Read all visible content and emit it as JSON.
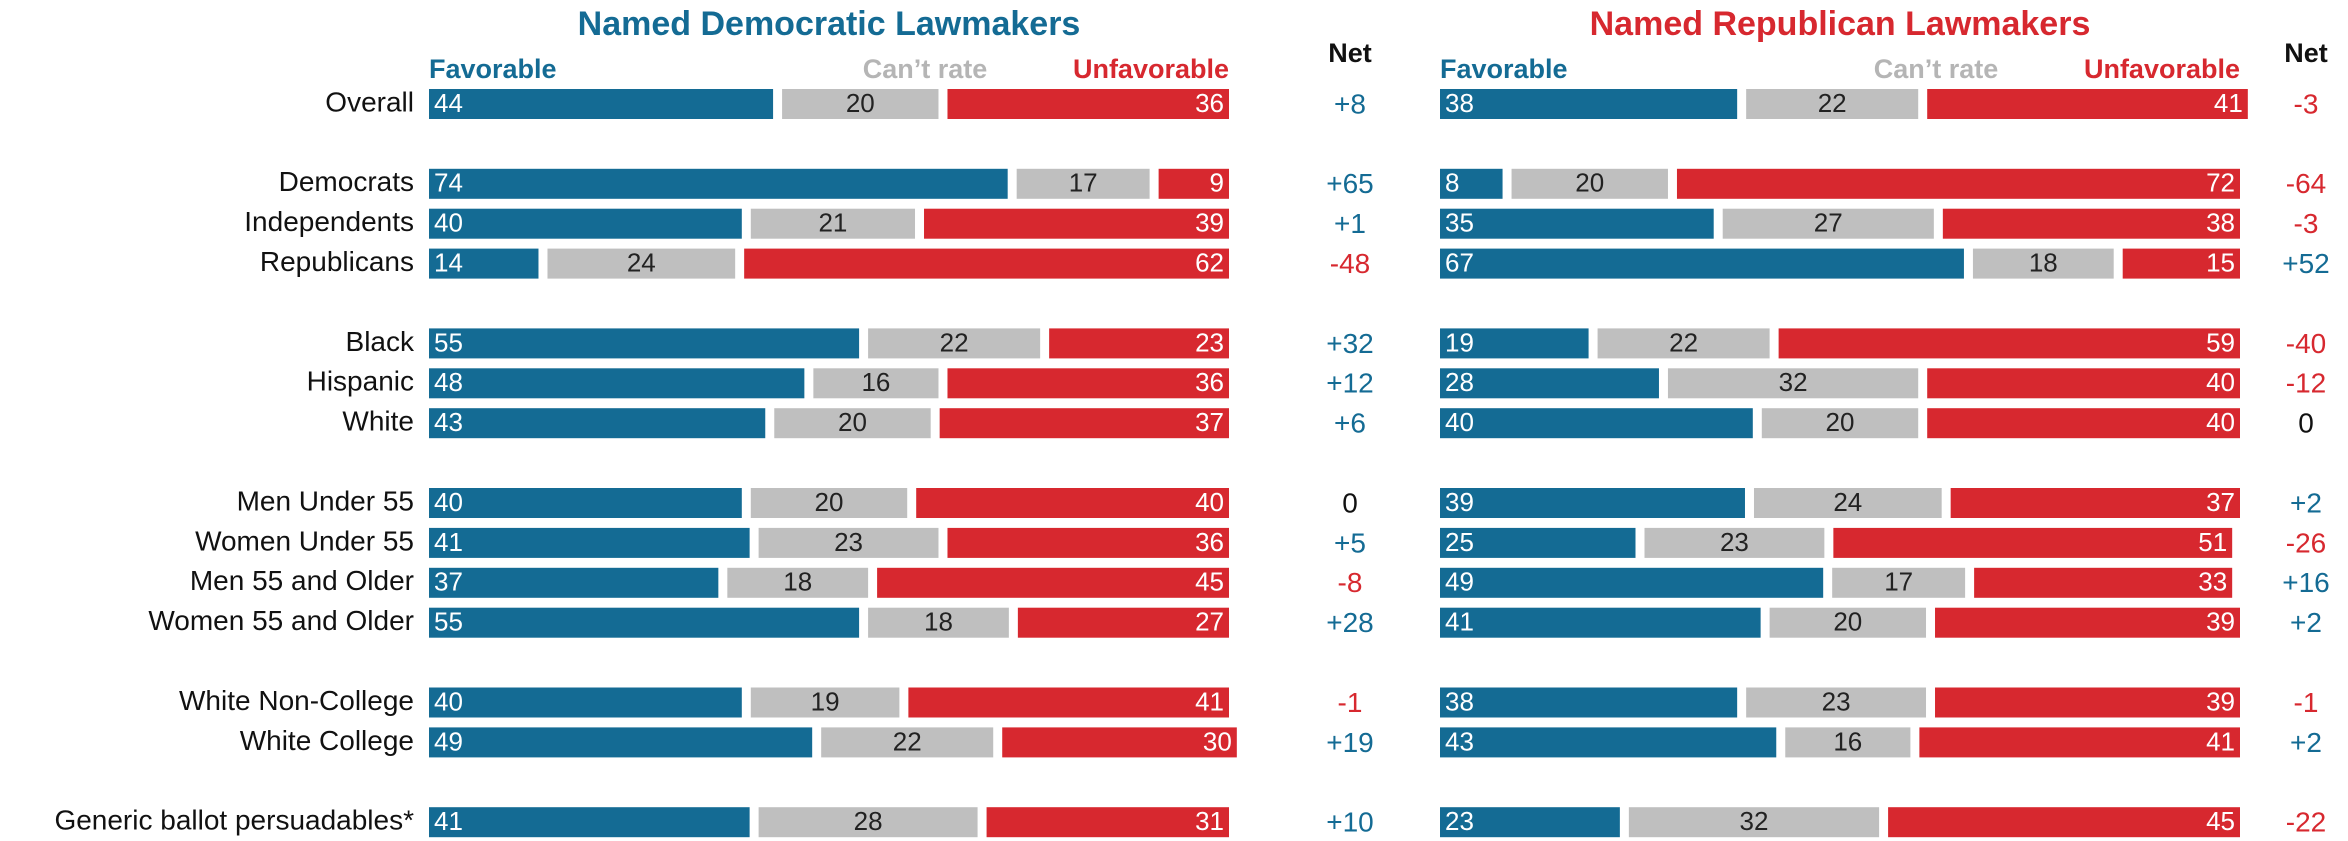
{
  "chart_data": [
    {
      "type": "bar",
      "stacked": true,
      "title": "Named Democratic Lawmakers",
      "categories": [
        "Overall",
        null,
        "Democrats",
        "Independents",
        "Republicans",
        null,
        "Black",
        "Hispanic",
        "White",
        null,
        "Men Under 55",
        "Women Under 55",
        "Men 55 and Older",
        "Women 55 and Older",
        null,
        "White Non-College",
        "White College",
        null,
        "Generic ballot persuadables*"
      ],
      "series": [
        {
          "name": "Favorable",
          "color": "#146b94",
          "values": [
            44,
            null,
            74,
            40,
            14,
            null,
            55,
            48,
            43,
            null,
            40,
            41,
            37,
            55,
            null,
            40,
            49,
            null,
            41
          ]
        },
        {
          "name": "Can’t rate",
          "color": "#bfbfbf",
          "values": [
            20,
            null,
            17,
            21,
            24,
            null,
            22,
            16,
            20,
            null,
            20,
            23,
            18,
            18,
            null,
            19,
            22,
            null,
            28
          ]
        },
        {
          "name": "Unfavorable",
          "color": "#d7282f",
          "values": [
            36,
            null,
            9,
            39,
            62,
            null,
            23,
            36,
            37,
            null,
            40,
            36,
            45,
            27,
            null,
            41,
            30,
            null,
            31
          ]
        }
      ],
      "net": {
        "name": "Net",
        "values": [
          8,
          null,
          65,
          1,
          -48,
          null,
          32,
          12,
          6,
          null,
          0,
          5,
          -8,
          28,
          null,
          -1,
          19,
          null,
          10
        ],
        "value_labels": [
          "+8",
          null,
          "+65",
          "+1",
          "-48",
          null,
          "+32",
          "+12",
          "+6",
          null,
          "0",
          "+5",
          "-8",
          "+28",
          null,
          "-1",
          "+19",
          null,
          "+10"
        ]
      }
    },
    {
      "type": "bar",
      "stacked": true,
      "title": "Named Republican Lawmakers",
      "series": [
        {
          "name": "Favorable",
          "color": "#146b94",
          "values": [
            38,
            null,
            8,
            35,
            67,
            null,
            19,
            28,
            40,
            null,
            39,
            25,
            49,
            41,
            null,
            38,
            43,
            null,
            23
          ]
        },
        {
          "name": "Can’t rate",
          "color": "#bfbfbf",
          "values": [
            22,
            null,
            20,
            27,
            18,
            null,
            22,
            32,
            20,
            null,
            24,
            23,
            17,
            20,
            null,
            23,
            16,
            null,
            32
          ]
        },
        {
          "name": "Unfavorable",
          "color": "#d7282f",
          "values": [
            41,
            null,
            72,
            38,
            15,
            null,
            59,
            40,
            40,
            null,
            37,
            51,
            33,
            39,
            null,
            39,
            41,
            null,
            45
          ]
        }
      ],
      "net": {
        "name": "Net",
        "values": [
          -3,
          null,
          -64,
          -3,
          52,
          null,
          -40,
          -12,
          0,
          null,
          2,
          -26,
          16,
          2,
          null,
          -1,
          2,
          null,
          -22
        ],
        "value_labels": [
          "-3",
          null,
          "-64",
          "-3",
          "+52",
          null,
          "-40",
          "-12",
          "0",
          null,
          "+2",
          "-26",
          "+16",
          "+2",
          null,
          "-1",
          "+2",
          null,
          "-22"
        ]
      }
    }
  ]
}
